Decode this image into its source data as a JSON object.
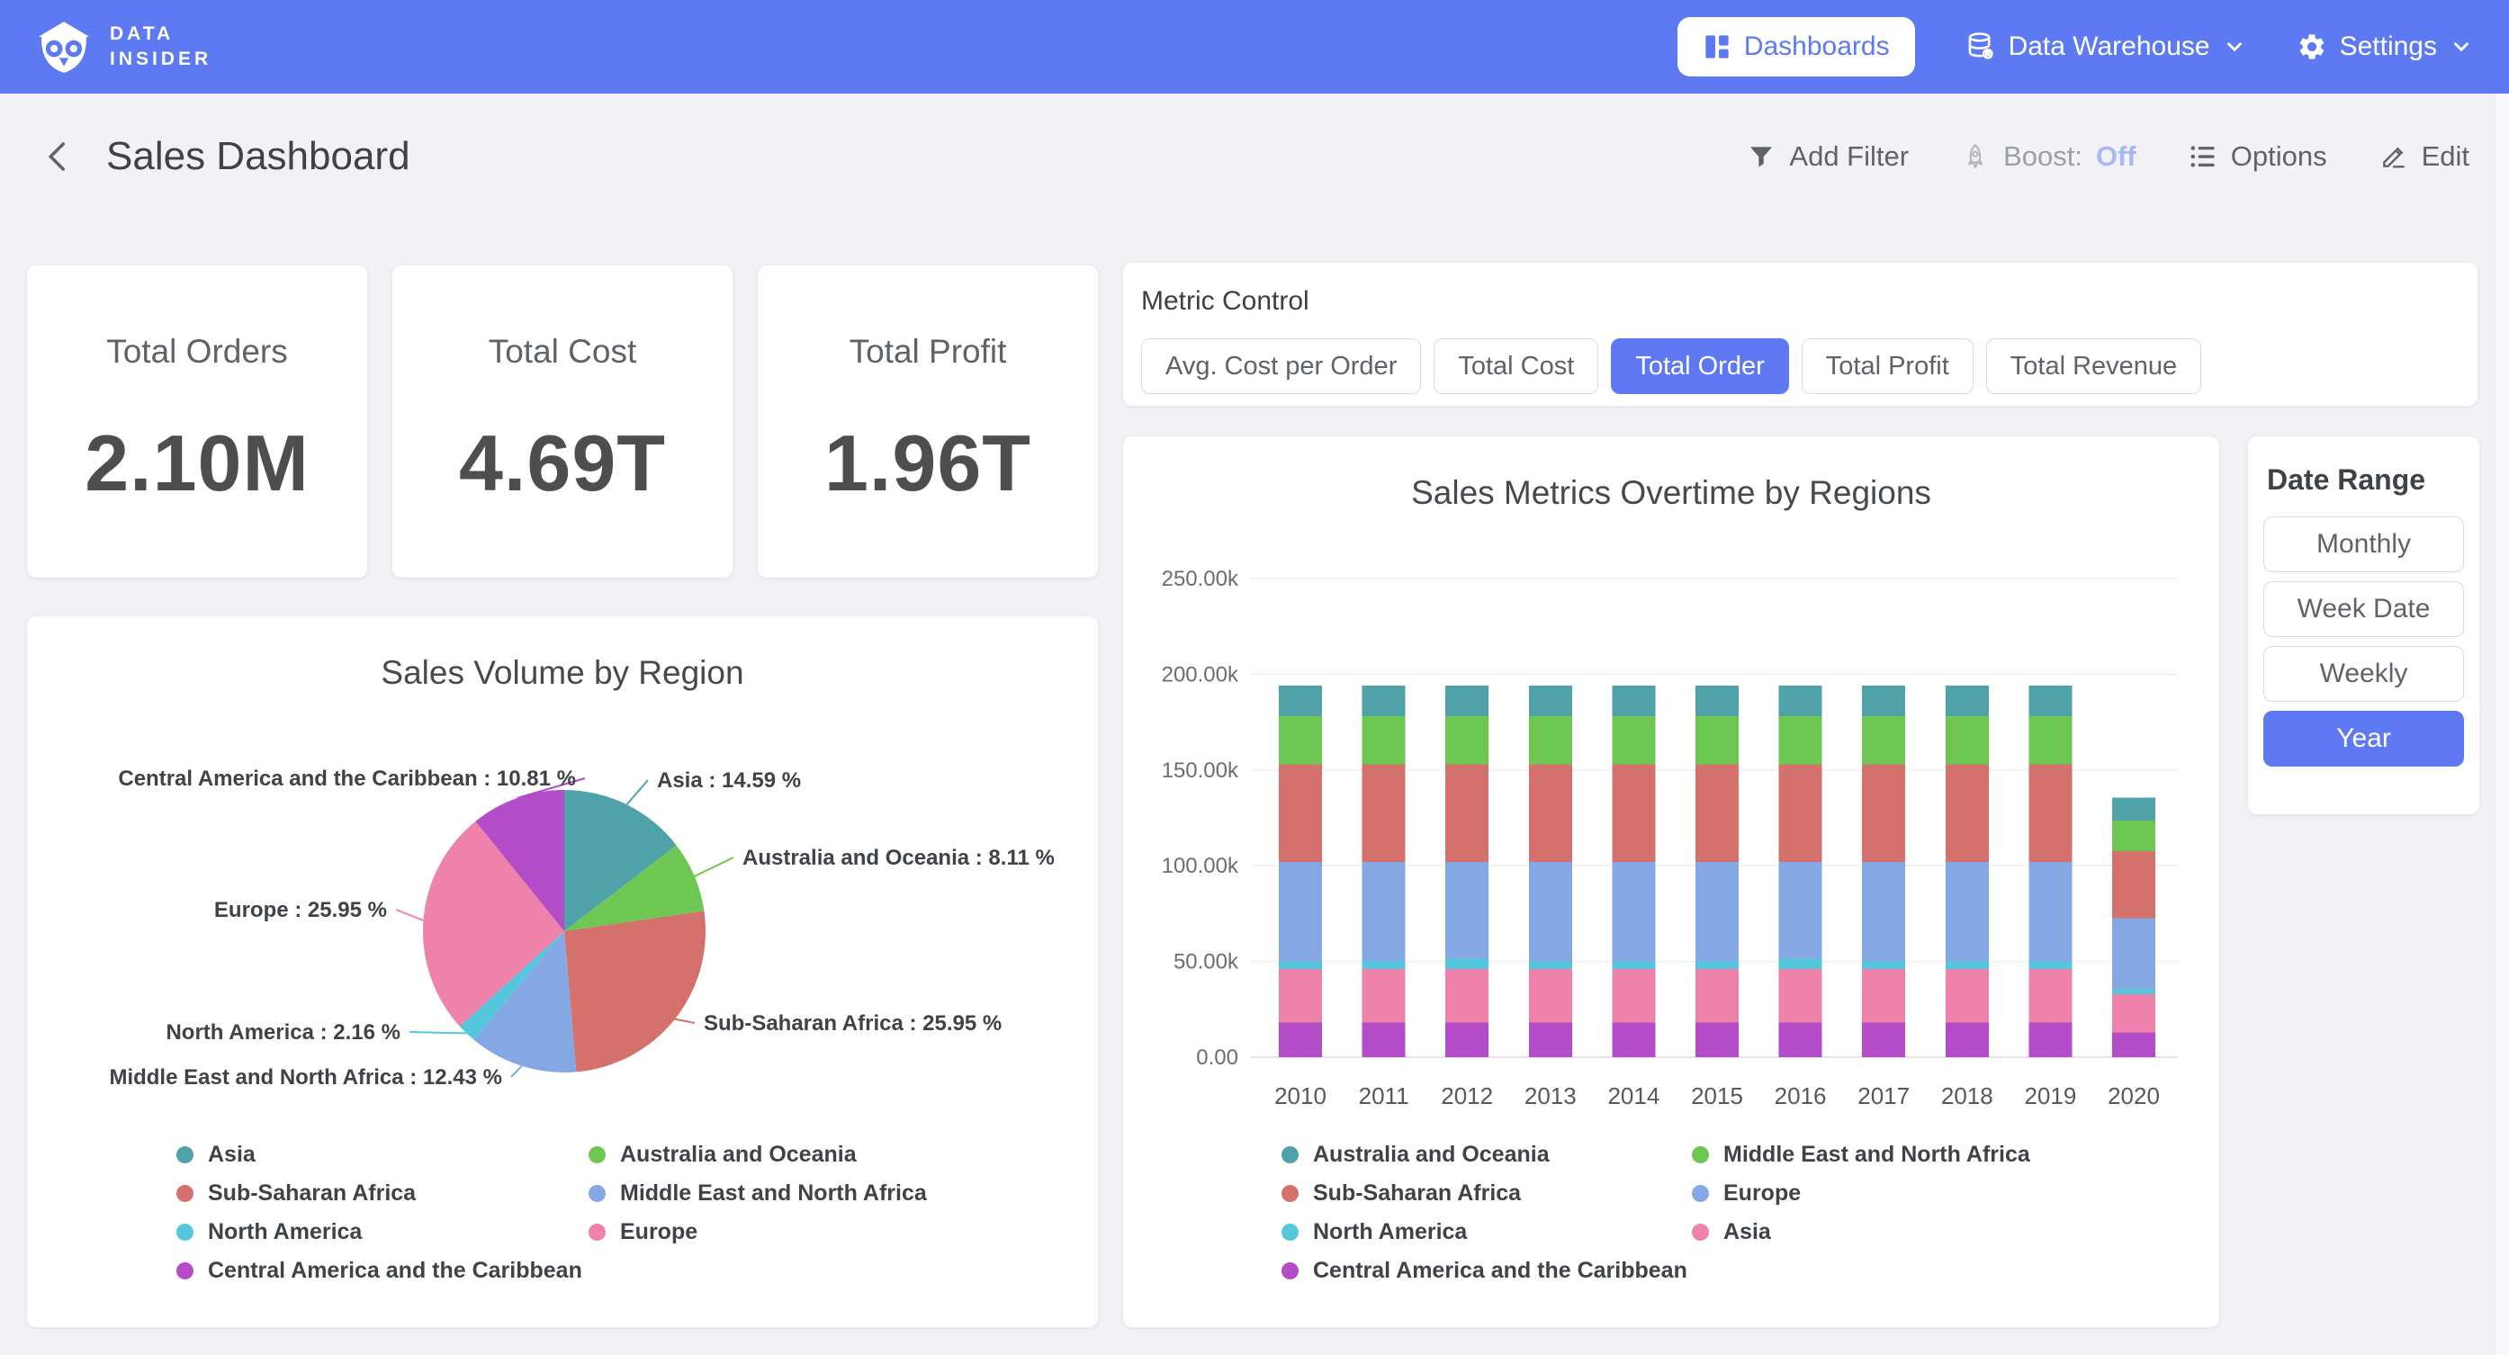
{
  "colors": {
    "accent": "#5e79f2",
    "nav_bg": "#5e7af3",
    "page_bg": "#f1f1f6",
    "teal": "#4fa2a8",
    "green": "#6ec653",
    "red": "#d4716c",
    "blue": "#84a8e4",
    "cyan": "#54c7dd",
    "pink": "#ee82ab",
    "purple": "#b44bc8"
  },
  "nav": {
    "brand_line1": "DATA",
    "brand_line2": "INSIDER",
    "dashboards_label": "Dashboards",
    "data_warehouse_label": "Data Warehouse",
    "settings_label": "Settings"
  },
  "header": {
    "title": "Sales Dashboard",
    "actions": {
      "add_filter": "Add Filter",
      "boost_label": "Boost:",
      "boost_state": "Off",
      "options": "Options",
      "edit": "Edit"
    }
  },
  "kpis": [
    {
      "label": "Total Orders",
      "value": "2.10M"
    },
    {
      "label": "Total Cost",
      "value": "4.69T"
    },
    {
      "label": "Total Profit",
      "value": "1.96T"
    }
  ],
  "metric_control": {
    "title": "Metric Control",
    "options": [
      {
        "label": "Avg. Cost per Order",
        "active": false
      },
      {
        "label": "Total Cost",
        "active": false
      },
      {
        "label": "Total Order",
        "active": true
      },
      {
        "label": "Total Profit",
        "active": false
      },
      {
        "label": "Total Revenue",
        "active": false
      }
    ]
  },
  "date_range": {
    "title": "Date Range",
    "options": [
      {
        "label": "Monthly",
        "active": false
      },
      {
        "label": "Week Date",
        "active": false
      },
      {
        "label": "Weekly",
        "active": false
      },
      {
        "label": "Year",
        "active": true
      }
    ]
  },
  "chart_data": [
    {
      "type": "pie",
      "title": "Sales Volume by Region",
      "unit": "%",
      "slices": [
        {
          "label": "Asia",
          "value": 14.59,
          "color": "#4fa2a8"
        },
        {
          "label": "Australia and Oceania",
          "value": 8.11,
          "color": "#6ec653"
        },
        {
          "label": "Sub-Saharan Africa",
          "value": 25.95,
          "color": "#d4716c"
        },
        {
          "label": "Middle East and North Africa",
          "value": 12.43,
          "color": "#84a8e4"
        },
        {
          "label": "North America",
          "value": 2.16,
          "color": "#54c7dd"
        },
        {
          "label": "Europe",
          "value": 25.95,
          "color": "#ee82ab"
        },
        {
          "label": "Central America and the Caribbean",
          "value": 10.81,
          "color": "#b44bc8"
        }
      ],
      "legend": [
        {
          "label": "Asia",
          "color": "#4fa2a8"
        },
        {
          "label": "Sub-Saharan Africa",
          "color": "#d4716c"
        },
        {
          "label": "North America",
          "color": "#54c7dd"
        },
        {
          "label": "Central America and the Caribbean",
          "color": "#b44bc8"
        },
        {
          "label": "Australia and Oceania",
          "color": "#6ec653"
        },
        {
          "label": "Middle East and North Africa",
          "color": "#84a8e4"
        },
        {
          "label": "Europe",
          "color": "#ee82ab"
        }
      ]
    },
    {
      "type": "stacked-bar",
      "title": "Sales Metrics Overtime by Regions",
      "categories": [
        "2010",
        "2011",
        "2012",
        "2013",
        "2014",
        "2015",
        "2016",
        "2017",
        "2018",
        "2019",
        "2020"
      ],
      "ylim": [
        0,
        250000
      ],
      "y_ticks": [
        {
          "v": 0,
          "label": "0.00"
        },
        {
          "v": 50000,
          "label": "50.00k"
        },
        {
          "v": 100000,
          "label": "100.00k"
        },
        {
          "v": 150000,
          "label": "150.00k"
        },
        {
          "v": 200000,
          "label": "200.00k"
        },
        {
          "v": 250000,
          "label": "250.00k"
        }
      ],
      "series": [
        {
          "name": "Central America and the Caribbean",
          "color": "#b44bc8",
          "values": [
            18000,
            18000,
            18000,
            18000,
            18000,
            18000,
            18000,
            18000,
            18000,
            18000,
            13000
          ]
        },
        {
          "name": "Asia",
          "color": "#ee82ab",
          "values": [
            28000,
            28000,
            28000,
            28000,
            28000,
            28000,
            28000,
            28000,
            28000,
            28000,
            20000
          ]
        },
        {
          "name": "North America",
          "color": "#54c7dd",
          "values": [
            4000,
            4000,
            5500,
            4000,
            4000,
            4000,
            5500,
            4000,
            4000,
            4000,
            2500
          ]
        },
        {
          "name": "Europe",
          "color": "#84a8e4",
          "values": [
            52000,
            52000,
            50500,
            52000,
            52000,
            52000,
            50500,
            52000,
            52000,
            52000,
            37000
          ]
        },
        {
          "name": "Sub-Saharan Africa",
          "color": "#d4716c",
          "values": [
            51000,
            51000,
            51000,
            51000,
            51000,
            51000,
            51000,
            51000,
            51000,
            51000,
            35000
          ]
        },
        {
          "name": "Middle East and North Africa",
          "color": "#6ec653",
          "values": [
            25000,
            25000,
            25000,
            25000,
            25000,
            25000,
            25000,
            25000,
            25000,
            25000,
            16000
          ]
        },
        {
          "name": "Australia and Oceania",
          "color": "#4fa2a8",
          "values": [
            16000,
            16000,
            16000,
            16000,
            16000,
            16000,
            16000,
            16000,
            16000,
            16000,
            12000
          ]
        }
      ],
      "legend": [
        {
          "label": "Australia and Oceania",
          "color": "#4fa2a8"
        },
        {
          "label": "Sub-Saharan Africa",
          "color": "#d4716c"
        },
        {
          "label": "North America",
          "color": "#54c7dd"
        },
        {
          "label": "Central America and the Caribbean",
          "color": "#b44bc8"
        },
        {
          "label": "Middle East and North Africa",
          "color": "#6ec653"
        },
        {
          "label": "Europe",
          "color": "#84a8e4"
        },
        {
          "label": "Asia",
          "color": "#ee82ab"
        }
      ]
    }
  ]
}
